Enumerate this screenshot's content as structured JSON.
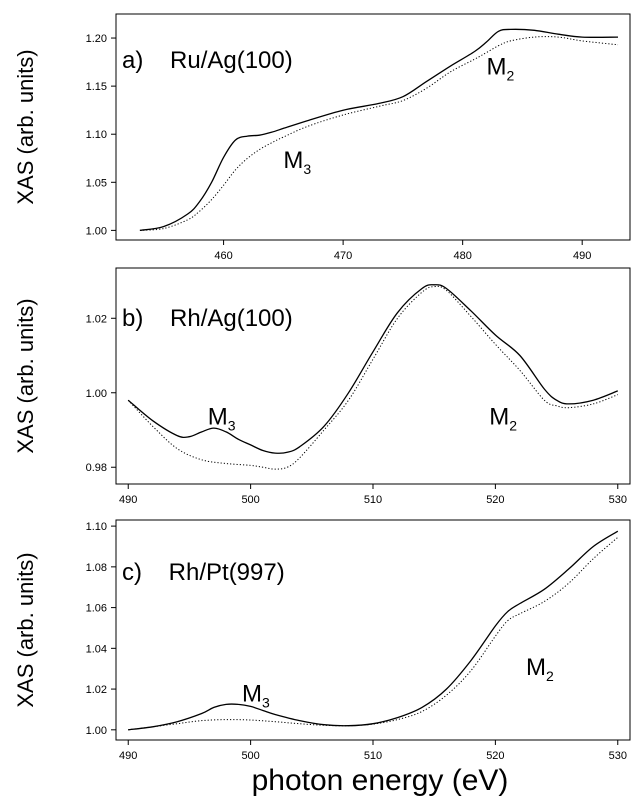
{
  "xlabel": "photon energy (eV)",
  "colors": {
    "solid": "#000000",
    "dotted": "#000000"
  },
  "chart_data": [
    {
      "type": "line",
      "title": "a)    Ru/Ag(100)",
      "ylabel": "XAS (arb. units)",
      "xlim": [
        451,
        494
      ],
      "ylim": [
        0.99,
        1.225
      ],
      "xticks": [
        460,
        470,
        480,
        490
      ],
      "yticks": [
        1.0,
        1.05,
        1.1,
        1.15,
        1.2
      ],
      "ytick_labels": [
        "1.00",
        "1.05",
        "1.10",
        "1.15",
        "1.20"
      ],
      "annotations": [
        {
          "text": "M",
          "sub": "3",
          "x": 465,
          "y": 1.065
        },
        {
          "text": "M",
          "sub": "2",
          "x": 482,
          "y": 1.162
        }
      ],
      "series": [
        {
          "style": "solid",
          "x": [
            453,
            455,
            457,
            458,
            459,
            460,
            461,
            462,
            463,
            464,
            465,
            467,
            470,
            473,
            475,
            477,
            479,
            481,
            482,
            483,
            484,
            486,
            488,
            490,
            493
          ],
          "y": [
            1.0,
            1.004,
            1.017,
            1.03,
            1.05,
            1.076,
            1.094,
            1.098,
            1.099,
            1.102,
            1.106,
            1.114,
            1.125,
            1.132,
            1.139,
            1.155,
            1.171,
            1.186,
            1.196,
            1.207,
            1.209,
            1.208,
            1.204,
            1.201,
            1.201
          ]
        },
        {
          "style": "dotted",
          "x": [
            453,
            455,
            457,
            458,
            459,
            460,
            461,
            462,
            463,
            464,
            465,
            467,
            470,
            473,
            475,
            477,
            479,
            481,
            482,
            483,
            484,
            486,
            488,
            490,
            493
          ],
          "y": [
            1.0,
            1.002,
            1.011,
            1.02,
            1.032,
            1.047,
            1.063,
            1.075,
            1.084,
            1.091,
            1.097,
            1.108,
            1.12,
            1.129,
            1.135,
            1.148,
            1.165,
            1.178,
            1.185,
            1.192,
            1.197,
            1.201,
            1.201,
            1.197,
            1.193
          ]
        }
      ]
    },
    {
      "type": "line",
      "title": "b)    Rh/Ag(100)",
      "ylabel": "XAS (arb. units)",
      "xlim": [
        489,
        531
      ],
      "ylim": [
        0.9755,
        1.0335
      ],
      "xticks": [
        490,
        500,
        510,
        520,
        530
      ],
      "yticks": [
        0.98,
        1.0,
        1.02
      ],
      "ytick_labels": [
        "0.98",
        "1.00",
        "1.02"
      ],
      "annotations": [
        {
          "text": "M",
          "sub": "3",
          "x": 496.5,
          "y": 0.9915
        },
        {
          "text": "M",
          "sub": "2",
          "x": 519.5,
          "y": 0.9915
        }
      ],
      "series": [
        {
          "style": "solid",
          "x": [
            490,
            492,
            494,
            495,
            496,
            497,
            498,
            499,
            500,
            501,
            502,
            503,
            504,
            506,
            508,
            510,
            512,
            514,
            515,
            516,
            518,
            520,
            522,
            524,
            525,
            526,
            528,
            530
          ],
          "y": [
            0.998,
            0.9925,
            0.9885,
            0.9882,
            0.9895,
            0.9905,
            0.9895,
            0.9875,
            0.986,
            0.9845,
            0.9838,
            0.984,
            0.9855,
            0.991,
            1.0,
            1.011,
            1.0215,
            1.028,
            1.029,
            1.028,
            1.022,
            1.0155,
            1.01,
            1.001,
            0.998,
            0.997,
            0.998,
            1.0005
          ]
        },
        {
          "style": "dotted",
          "x": [
            490,
            492,
            494,
            496,
            498,
            500,
            501,
            502,
            503,
            504,
            506,
            508,
            510,
            512,
            514,
            515,
            516,
            518,
            520,
            522,
            524,
            525,
            526,
            528,
            530
          ],
          "y": [
            0.998,
            0.991,
            0.985,
            0.982,
            0.981,
            0.9805,
            0.98,
            0.9795,
            0.98,
            0.9825,
            0.99,
            0.998,
            1.009,
            1.02,
            1.027,
            1.0285,
            1.0275,
            1.0205,
            1.013,
            1.006,
            0.998,
            0.9965,
            0.996,
            0.997,
            0.9995
          ]
        }
      ]
    },
    {
      "type": "line",
      "title": "c)    Rh/Pt(997)",
      "ylabel": "XAS (arb. units)",
      "xlim": [
        489,
        531
      ],
      "ylim": [
        0.995,
        1.103
      ],
      "xticks": [
        490,
        500,
        510,
        520,
        530
      ],
      "yticks": [
        1.0,
        1.02,
        1.04,
        1.06,
        1.08,
        1.1
      ],
      "ytick_labels": [
        "1.00",
        "1.02",
        "1.04",
        "1.06",
        "1.08",
        "1.10"
      ],
      "annotations": [
        {
          "text": "M",
          "sub": "3",
          "x": 499.3,
          "y": 1.014
        },
        {
          "text": "M",
          "sub": "2",
          "x": 522.5,
          "y": 1.027
        }
      ],
      "series": [
        {
          "style": "solid",
          "x": [
            490,
            492,
            494,
            496,
            497,
            498,
            499,
            500,
            501,
            502,
            504,
            506,
            508,
            510,
            512,
            514,
            516,
            518,
            520,
            521,
            522,
            524,
            526,
            528,
            530
          ],
          "y": [
            1.0,
            1.0015,
            1.004,
            1.008,
            1.011,
            1.0125,
            1.0125,
            1.0115,
            1.0095,
            1.0075,
            1.0045,
            1.0025,
            1.002,
            1.003,
            1.006,
            1.011,
            1.02,
            1.034,
            1.051,
            1.058,
            1.062,
            1.069,
            1.079,
            1.09,
            1.0975
          ]
        },
        {
          "style": "dotted",
          "x": [
            490,
            492,
            494,
            496,
            498,
            500,
            502,
            504,
            506,
            508,
            510,
            512,
            514,
            516,
            518,
            520,
            521,
            522,
            524,
            526,
            528,
            530
          ],
          "y": [
            1.0,
            1.0015,
            1.003,
            1.0045,
            1.005,
            1.0048,
            1.004,
            1.003,
            1.0022,
            1.002,
            1.0028,
            1.005,
            1.009,
            1.017,
            1.029,
            1.046,
            1.0535,
            1.057,
            1.063,
            1.072,
            1.084,
            1.0945
          ]
        }
      ]
    }
  ]
}
